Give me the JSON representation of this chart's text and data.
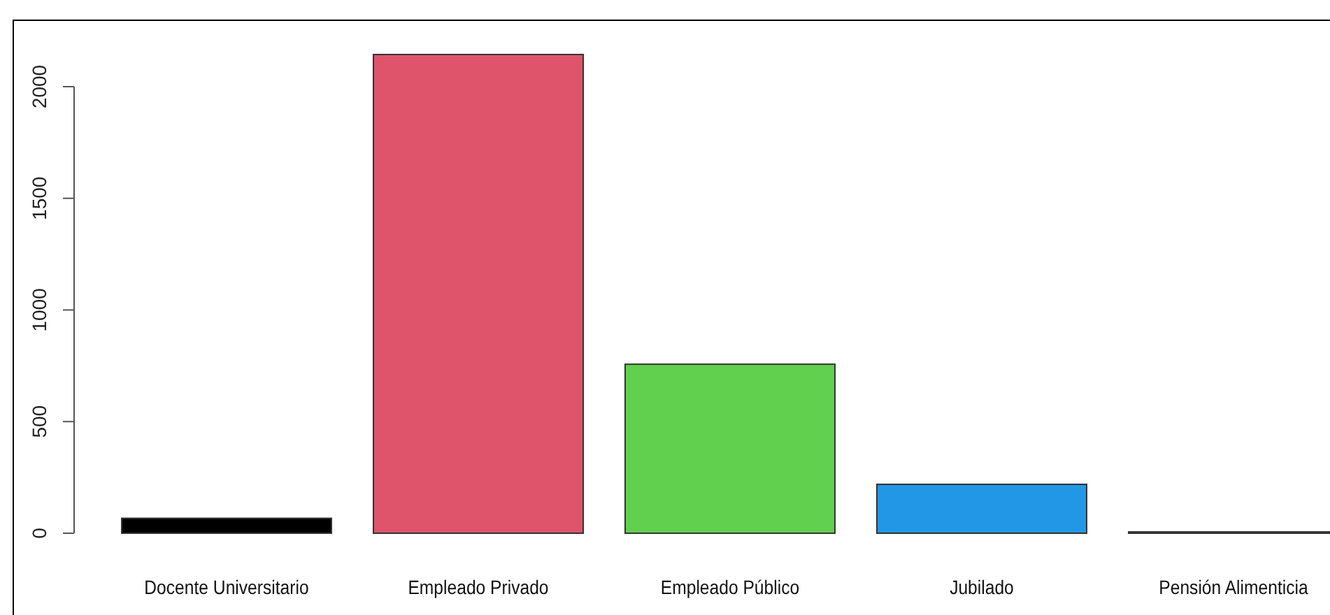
{
  "chart_data": {
    "type": "bar",
    "categories": [
      "Docente Universitario",
      "Empleado Privado",
      "Empleado Público",
      "Jubilado",
      "Pensión Alimenticia"
    ],
    "values": [
      67,
      2144,
      757,
      219,
      6
    ],
    "colors": [
      "#000000",
      "#df536b",
      "#61d04f",
      "#2297e6",
      "#000000"
    ],
    "ylim": [
      0,
      2144
    ],
    "yticks": [
      0,
      500,
      1000,
      1500,
      2000
    ],
    "grid": false
  }
}
